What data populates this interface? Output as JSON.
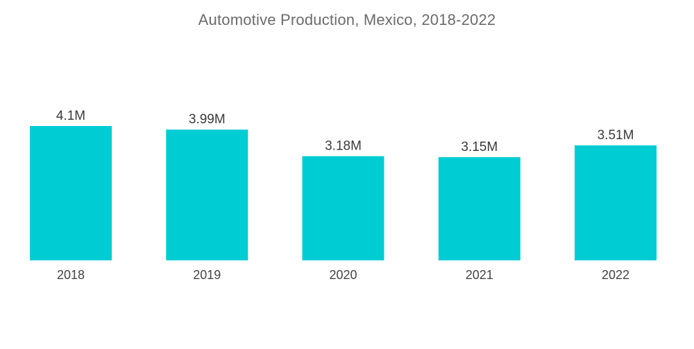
{
  "chart_data": {
    "type": "bar",
    "title": "Automotive Production, Mexico, 2018-2022",
    "xlabel": "",
    "ylabel": "",
    "categories": [
      "2018",
      "2019",
      "2020",
      "2021",
      "2022"
    ],
    "values": [
      4.1,
      3.99,
      3.18,
      3.15,
      3.51
    ],
    "data_labels": [
      "4.1M",
      "3.99M",
      "3.18M",
      "3.15M",
      "3.51M"
    ],
    "unit": "M",
    "ylim": [
      0,
      4.1
    ],
    "grid": false,
    "legend": "none",
    "bar_color": "#00ccd3"
  }
}
